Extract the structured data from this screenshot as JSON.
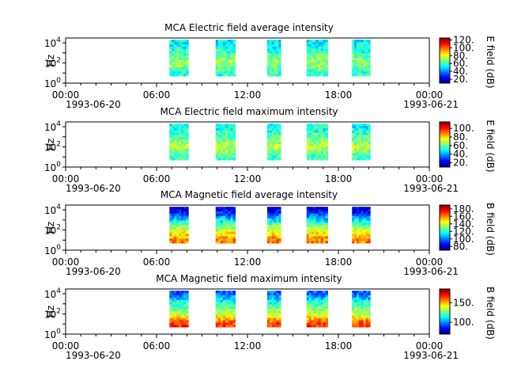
{
  "figure": {
    "x_tick_labels": [
      "00:00",
      "06:00",
      "12:00",
      "18:00",
      "00:00"
    ],
    "x_tick_hours": [
      0,
      6,
      12,
      18,
      24
    ],
    "date_start": "1993-06-20",
    "date_end": "1993-06-21"
  },
  "chart_data": [
    {
      "type": "heatmap",
      "title": "MCA  Electric field average intensity",
      "ylabel": "Hz",
      "colorbar_label": "E field (dB)",
      "colorbar_ticks": [
        20,
        40,
        60,
        80,
        100,
        120
      ],
      "colorbar_tick_labels": [
        "20.",
        "40.",
        "60.",
        "80.",
        "100.",
        "120."
      ],
      "colorbar_range": [
        10,
        125
      ],
      "y_scale": "log",
      "yticks": [
        "10^0",
        "10^2",
        "10^4"
      ],
      "ylim": [
        1,
        30000
      ],
      "x_range_hours": [
        0,
        24
      ],
      "data_freq_range_hz": [
        5,
        20000
      ],
      "passes_hours": [
        [
          6.85,
          8.1
        ],
        [
          9.9,
          11.2
        ],
        [
          13.3,
          14.2
        ],
        [
          15.9,
          17.3
        ],
        [
          18.9,
          20.1
        ]
      ],
      "band_levels": [
        {
          "freq_hz": 10000,
          "db": 52
        },
        {
          "freq_hz": 1000,
          "db": 60
        },
        {
          "freq_hz": 100,
          "db": 72
        },
        {
          "freq_hz": 10,
          "db": 58
        }
      ]
    },
    {
      "type": "heatmap",
      "title": "MCA  Electric field maximum intensity",
      "ylabel": "Hz",
      "colorbar_label": "E field (dB)",
      "colorbar_ticks": [
        20,
        40,
        60,
        80,
        100
      ],
      "colorbar_tick_labels": [
        "20.",
        "40.",
        "60.",
        "80.",
        "100."
      ],
      "colorbar_range": [
        10,
        115
      ],
      "y_scale": "log",
      "yticks": [
        "10^0",
        "10^2",
        "10^4"
      ],
      "ylim": [
        1,
        30000
      ],
      "x_range_hours": [
        0,
        24
      ],
      "data_freq_range_hz": [
        5,
        20000
      ],
      "passes_hours": [
        [
          6.85,
          8.1
        ],
        [
          9.9,
          11.2
        ],
        [
          13.3,
          14.2
        ],
        [
          15.9,
          17.3
        ],
        [
          18.9,
          20.1
        ]
      ],
      "band_levels": [
        {
          "freq_hz": 10000,
          "db": 50
        },
        {
          "freq_hz": 1000,
          "db": 58
        },
        {
          "freq_hz": 100,
          "db": 70
        },
        {
          "freq_hz": 10,
          "db": 55
        }
      ]
    },
    {
      "type": "heatmap",
      "title": "MCA  Magnetic field average intensity",
      "ylabel": "Hz",
      "colorbar_label": "B field (dB)",
      "colorbar_ticks": [
        80,
        100,
        120,
        140,
        160,
        180
      ],
      "colorbar_tick_labels": [
        "80.",
        "100.",
        "120.",
        "140.",
        "160.",
        "180."
      ],
      "colorbar_range": [
        70,
        190
      ],
      "y_scale": "log",
      "yticks": [
        "10^0",
        "10^2",
        "10^4"
      ],
      "ylim": [
        1,
        30000
      ],
      "x_range_hours": [
        0,
        24
      ],
      "data_freq_range_hz": [
        5,
        20000
      ],
      "passes_hours": [
        [
          6.85,
          8.1
        ],
        [
          9.9,
          11.2
        ],
        [
          13.3,
          14.2
        ],
        [
          15.9,
          17.3
        ],
        [
          18.9,
          20.1
        ]
      ],
      "band_levels": [
        {
          "freq_hz": 10000,
          "db": 80
        },
        {
          "freq_hz": 1000,
          "db": 112
        },
        {
          "freq_hz": 100,
          "db": 140
        },
        {
          "freq_hz": 10,
          "db": 160
        }
      ]
    },
    {
      "type": "heatmap",
      "title": "MCA  Magnetic field maximum intensity",
      "ylabel": "Hz",
      "colorbar_label": "B field (dB)",
      "colorbar_ticks": [
        100,
        150
      ],
      "colorbar_tick_labels": [
        "100.",
        "150."
      ],
      "colorbar_range": [
        70,
        185
      ],
      "y_scale": "log",
      "yticks": [
        "10^0",
        "10^2",
        "10^4"
      ],
      "ylim": [
        1,
        30000
      ],
      "x_range_hours": [
        0,
        24
      ],
      "data_freq_range_hz": [
        5,
        20000
      ],
      "passes_hours": [
        [
          6.85,
          8.1
        ],
        [
          9.9,
          11.2
        ],
        [
          13.3,
          14.2
        ],
        [
          15.9,
          17.3
        ],
        [
          18.9,
          20.1
        ]
      ],
      "band_levels": [
        {
          "freq_hz": 10000,
          "db": 95
        },
        {
          "freq_hz": 1000,
          "db": 120
        },
        {
          "freq_hz": 100,
          "db": 135
        },
        {
          "freq_hz": 10,
          "db": 165
        }
      ]
    }
  ]
}
